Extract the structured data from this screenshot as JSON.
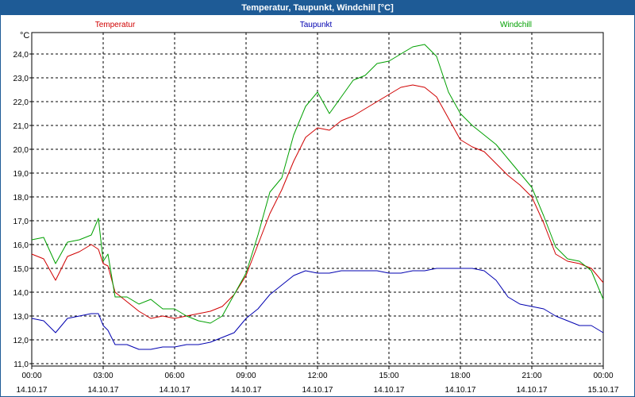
{
  "window": {
    "title": "Temperatur, Taupunkt, Windchill [°C]"
  },
  "chart_data": {
    "type": "line",
    "title": "Temperatur, Taupunkt, Windchill [°C]",
    "ylabel": "°C",
    "xlabel": "",
    "ylim": [
      10.9,
      24.9
    ],
    "xlim_hours": [
      0,
      24
    ],
    "grid": true,
    "y_ticks": [
      "11,0",
      "12,0",
      "13,0",
      "14,0",
      "15,0",
      "16,0",
      "17,0",
      "18,0",
      "19,0",
      "20,0",
      "21,0",
      "22,0",
      "23,0",
      "24,0"
    ],
    "x_ticks": [
      {
        "time": "00:00",
        "date": "14.10.17"
      },
      {
        "time": "03:00",
        "date": "14.10.17"
      },
      {
        "time": "06:00",
        "date": "14.10.17"
      },
      {
        "time": "09:00",
        "date": "14.10.17"
      },
      {
        "time": "12:00",
        "date": "14.10.17"
      },
      {
        "time": "15:00",
        "date": "14.10.17"
      },
      {
        "time": "18:00",
        "date": "14.10.17"
      },
      {
        "time": "21:00",
        "date": "14.10.17"
      },
      {
        "time": "00:00",
        "date": "15.10.17"
      }
    ],
    "x": [
      0,
      0.5,
      1,
      1.5,
      2,
      2.5,
      2.8,
      3,
      3.2,
      3.5,
      4,
      4.5,
      5,
      5.5,
      6,
      6.5,
      7,
      7.5,
      8,
      8.5,
      9,
      9.5,
      10,
      10.5,
      11,
      11.5,
      12,
      12.5,
      13,
      13.5,
      14,
      14.5,
      15,
      15.5,
      16,
      16.5,
      17,
      17.5,
      18,
      18.5,
      19,
      19.5,
      20,
      20.5,
      21,
      21.5,
      22,
      22.5,
      23,
      23.5,
      24
    ],
    "series": [
      {
        "name": "Temperatur",
        "color": "#d00000",
        "values": [
          15.6,
          15.4,
          14.5,
          15.5,
          15.7,
          16.0,
          15.8,
          15.2,
          15.1,
          14.0,
          13.6,
          13.2,
          12.9,
          13.0,
          12.9,
          13.0,
          13.1,
          13.2,
          13.4,
          13.9,
          14.7,
          16.0,
          17.3,
          18.3,
          19.5,
          20.5,
          20.9,
          20.8,
          21.2,
          21.4,
          21.7,
          22.0,
          22.3,
          22.6,
          22.7,
          22.6,
          22.2,
          21.3,
          20.4,
          20.1,
          19.9,
          19.4,
          18.9,
          18.5,
          18.0,
          16.9,
          15.6,
          15.3,
          15.2,
          15.0,
          14.4
        ]
      },
      {
        "name": "Taupunkt",
        "color": "#0000b0",
        "values": [
          12.9,
          12.8,
          12.3,
          12.9,
          13.0,
          13.1,
          13.1,
          12.6,
          12.4,
          11.8,
          11.8,
          11.6,
          11.6,
          11.7,
          11.7,
          11.8,
          11.8,
          11.9,
          12.1,
          12.3,
          12.9,
          13.3,
          13.9,
          14.3,
          14.7,
          14.9,
          14.8,
          14.8,
          14.9,
          14.9,
          14.9,
          14.9,
          14.8,
          14.8,
          14.9,
          14.9,
          15.0,
          15.0,
          15.0,
          15.0,
          14.9,
          14.5,
          13.8,
          13.5,
          13.4,
          13.3,
          13.0,
          12.8,
          12.6,
          12.6,
          12.3
        ]
      },
      {
        "name": "Windchill",
        "color": "#00a000",
        "values": [
          16.2,
          16.3,
          15.2,
          16.1,
          16.2,
          16.4,
          17.1,
          15.3,
          15.6,
          13.8,
          13.8,
          13.5,
          13.7,
          13.3,
          13.3,
          13.0,
          12.8,
          12.7,
          13.0,
          13.9,
          14.8,
          16.4,
          18.2,
          18.8,
          20.6,
          21.8,
          22.4,
          21.5,
          22.2,
          22.9,
          23.1,
          23.6,
          23.7,
          24.0,
          24.3,
          24.4,
          23.9,
          22.4,
          21.5,
          21.0,
          20.6,
          20.2,
          19.6,
          19.0,
          18.4,
          17.2,
          15.9,
          15.4,
          15.3,
          14.9,
          13.7
        ]
      }
    ]
  }
}
